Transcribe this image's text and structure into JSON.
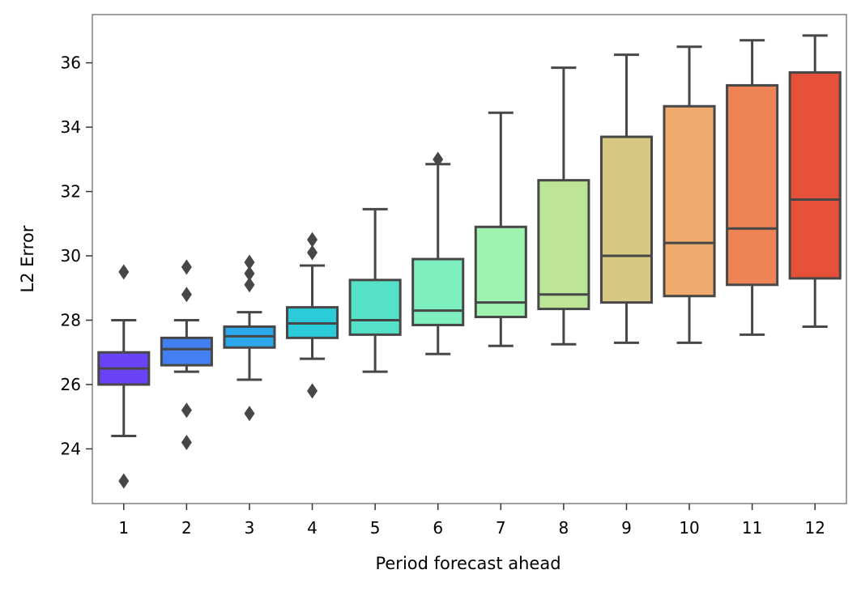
{
  "chart_data": {
    "type": "box",
    "title": "",
    "xlabel": "Period forecast ahead",
    "ylabel": "L2 Error",
    "ylim": [
      22.3,
      37.5
    ],
    "yticks": [
      24,
      26,
      28,
      30,
      32,
      34,
      36
    ],
    "grid": false,
    "legend": "none",
    "categories": [
      "1",
      "2",
      "3",
      "4",
      "5",
      "6",
      "7",
      "8",
      "9",
      "10",
      "11",
      "12"
    ],
    "boxes": [
      {
        "category": "1",
        "whisker_low": 24.4,
        "q1": 26.0,
        "median": 26.5,
        "q3": 27.0,
        "whisker_high": 28.0,
        "outliers": [
          29.5,
          23.0
        ],
        "color": "#6a43f6"
      },
      {
        "category": "2",
        "whisker_low": 26.4,
        "q1": 26.6,
        "median": 27.1,
        "q3": 27.45,
        "whisker_high": 28.0,
        "outliers": [
          29.65,
          28.8,
          25.2,
          24.2
        ],
        "color": "#427ff0"
      },
      {
        "category": "3",
        "whisker_low": 26.15,
        "q1": 27.15,
        "median": 27.5,
        "q3": 27.8,
        "whisker_high": 28.25,
        "outliers": [
          29.8,
          29.45,
          29.1,
          25.1
        ],
        "color": "#2aa8ea"
      },
      {
        "category": "4",
        "whisker_low": 26.8,
        "q1": 27.45,
        "median": 27.9,
        "q3": 28.4,
        "whisker_high": 29.7,
        "outliers": [
          30.5,
          30.1,
          25.8
        ],
        "color": "#2ccbd9"
      },
      {
        "category": "5",
        "whisker_low": 26.4,
        "q1": 27.55,
        "median": 28.0,
        "q3": 29.25,
        "whisker_high": 31.45,
        "outliers": [],
        "color": "#55e1c7"
      },
      {
        "category": "6",
        "whisker_low": 26.95,
        "q1": 27.85,
        "median": 28.3,
        "q3": 29.9,
        "whisker_high": 32.85,
        "outliers": [
          33.0
        ],
        "color": "#7eefbf"
      },
      {
        "category": "7",
        "whisker_low": 27.2,
        "q1": 28.1,
        "median": 28.55,
        "q3": 30.9,
        "whisker_high": 34.45,
        "outliers": [],
        "color": "#9ef3b0"
      },
      {
        "category": "8",
        "whisker_low": 27.25,
        "q1": 28.35,
        "median": 28.8,
        "q3": 32.35,
        "whisker_high": 35.85,
        "outliers": [],
        "color": "#bde597"
      },
      {
        "category": "9",
        "whisker_low": 27.3,
        "q1": 28.55,
        "median": 30.0,
        "q3": 33.7,
        "whisker_high": 36.25,
        "outliers": [],
        "color": "#d8c982"
      },
      {
        "category": "10",
        "whisker_low": 27.3,
        "q1": 28.75,
        "median": 30.4,
        "q3": 34.65,
        "whisker_high": 36.5,
        "outliers": [],
        "color": "#f0aa6d"
      },
      {
        "category": "11",
        "whisker_low": 27.55,
        "q1": 29.1,
        "median": 30.85,
        "q3": 35.3,
        "whisker_high": 36.7,
        "outliers": [],
        "color": "#ee8456"
      },
      {
        "category": "12",
        "whisker_low": 27.8,
        "q1": 29.3,
        "median": 31.75,
        "q3": 35.7,
        "whisker_high": 36.85,
        "outliers": [],
        "color": "#e55038"
      }
    ],
    "colors": {
      "line": "#474747",
      "frame": "#808080",
      "outlier": "#474747"
    }
  }
}
